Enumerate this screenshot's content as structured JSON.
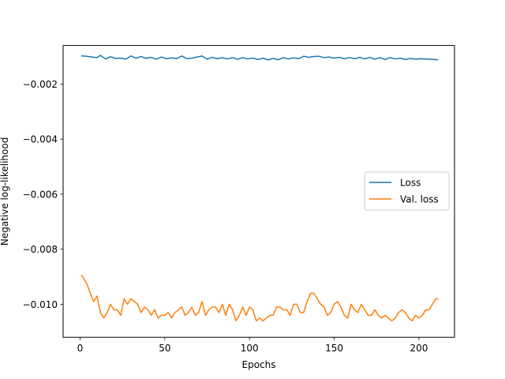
{
  "chart_data": {
    "type": "line",
    "title": "",
    "xlabel": "Epochs",
    "ylabel": "Negative log-likelihood",
    "xlim": [
      -10,
      221
    ],
    "ylim": [
      -0.0112,
      -0.0006
    ],
    "xticks": [
      0,
      50,
      100,
      150,
      200
    ],
    "xtick_labels": [
      "0",
      "50",
      "100",
      "150",
      "200"
    ],
    "yticks": [
      -0.01,
      -0.008,
      -0.006,
      -0.004,
      -0.002
    ],
    "ytick_labels": [
      "−0.010",
      "−0.008",
      "−0.006",
      "−0.004",
      "−0.002"
    ],
    "grid": false,
    "legend_position": "center-right",
    "colors": {
      "loss": "#1f77b4",
      "val_loss": "#ff7f0e"
    },
    "x_range": [
      1,
      211
    ],
    "series": [
      {
        "name": "Loss",
        "color": "#1f77b4",
        "x": [
          1,
          4,
          7,
          10,
          12,
          15,
          18,
          21,
          24,
          27,
          30,
          33,
          36,
          39,
          42,
          45,
          48,
          51,
          54,
          57,
          60,
          63,
          66,
          69,
          72,
          75,
          78,
          81,
          84,
          87,
          90,
          93,
          96,
          99,
          102,
          105,
          108,
          111,
          114,
          117,
          120,
          123,
          126,
          129,
          132,
          135,
          138,
          141,
          144,
          147,
          150,
          153,
          156,
          159,
          162,
          165,
          168,
          171,
          174,
          177,
          180,
          183,
          186,
          189,
          192,
          195,
          198,
          201,
          204,
          207,
          211
        ],
        "values": [
          -0.00098,
          -0.00099,
          -0.00102,
          -0.00104,
          -0.00096,
          -0.00109,
          -0.00101,
          -0.00107,
          -0.00106,
          -0.0011,
          -0.00098,
          -0.00106,
          -0.001,
          -0.00107,
          -0.00103,
          -0.0011,
          -0.00102,
          -0.00108,
          -0.00105,
          -0.00108,
          -0.00098,
          -0.00108,
          -0.00106,
          -0.00102,
          -0.00098,
          -0.0011,
          -0.00103,
          -0.00108,
          -0.00104,
          -0.00109,
          -0.00104,
          -0.0011,
          -0.00104,
          -0.00109,
          -0.00106,
          -0.00111,
          -0.00106,
          -0.00112,
          -0.00107,
          -0.00112,
          -0.00104,
          -0.00109,
          -0.00105,
          -0.00108,
          -0.00099,
          -0.00103,
          -0.001,
          -0.00099,
          -0.00104,
          -0.00102,
          -0.00106,
          -0.00103,
          -0.00108,
          -0.00104,
          -0.00108,
          -0.00103,
          -0.00109,
          -0.00103,
          -0.0011,
          -0.00104,
          -0.00111,
          -0.00104,
          -0.00109,
          -0.00106,
          -0.00111,
          -0.00107,
          -0.0011,
          -0.00108,
          -0.00109,
          -0.0011,
          -0.00112
        ]
      },
      {
        "name": "Val. loss",
        "color": "#ff7f0e",
        "x": [
          1,
          4,
          6,
          8,
          10,
          12,
          14,
          16,
          18,
          20,
          22,
          24,
          26,
          28,
          30,
          32,
          34,
          36,
          38,
          40,
          42,
          44,
          46,
          48,
          50,
          52,
          54,
          56,
          58,
          60,
          62,
          64,
          66,
          68,
          70,
          72,
          74,
          76,
          78,
          80,
          82,
          84,
          86,
          88,
          90,
          92,
          94,
          96,
          98,
          100,
          102,
          104,
          106,
          108,
          110,
          112,
          114,
          116,
          118,
          120,
          122,
          124,
          126,
          128,
          130,
          132,
          134,
          136,
          138,
          140,
          142,
          144,
          146,
          148,
          150,
          152,
          154,
          156,
          158,
          160,
          162,
          164,
          166,
          168,
          170,
          172,
          174,
          176,
          178,
          180,
          182,
          184,
          186,
          188,
          190,
          192,
          194,
          196,
          198,
          200,
          202,
          204,
          206,
          208,
          210,
          211
        ],
        "values": [
          -0.00895,
          -0.00925,
          -0.0096,
          -0.0099,
          -0.0097,
          -0.0103,
          -0.0105,
          -0.0103,
          -0.01,
          -0.0102,
          -0.0102,
          -0.0104,
          -0.0098,
          -0.01,
          -0.0098,
          -0.0099,
          -0.01,
          -0.0103,
          -0.0101,
          -0.0102,
          -0.0104,
          -0.0102,
          -0.0105,
          -0.0104,
          -0.0104,
          -0.0103,
          -0.0105,
          -0.0103,
          -0.0102,
          -0.0101,
          -0.0104,
          -0.0103,
          -0.0101,
          -0.0104,
          -0.0103,
          -0.0099,
          -0.0104,
          -0.0102,
          -0.0101,
          -0.0101,
          -0.0103,
          -0.01,
          -0.0104,
          -0.01,
          -0.0102,
          -0.0106,
          -0.0104,
          -0.0101,
          -0.0104,
          -0.0101,
          -0.0102,
          -0.0106,
          -0.0105,
          -0.0106,
          -0.0105,
          -0.0104,
          -0.0104,
          -0.0101,
          -0.0101,
          -0.0102,
          -0.0102,
          -0.0104,
          -0.01,
          -0.01,
          -0.0103,
          -0.0103,
          -0.0099,
          -0.0096,
          -0.0096,
          -0.0098,
          -0.01,
          -0.0101,
          -0.0104,
          -0.0103,
          -0.01,
          -0.0099,
          -0.0101,
          -0.0104,
          -0.0105,
          -0.01,
          -0.0102,
          -0.0103,
          -0.01,
          -0.0102,
          -0.0104,
          -0.0104,
          -0.0102,
          -0.0104,
          -0.0105,
          -0.0104,
          -0.0105,
          -0.0106,
          -0.0105,
          -0.0103,
          -0.0102,
          -0.0103,
          -0.0105,
          -0.0106,
          -0.0104,
          -0.0105,
          -0.0104,
          -0.0102,
          -0.0102,
          -0.01,
          -0.0098,
          -0.0098
        ]
      }
    ]
  }
}
